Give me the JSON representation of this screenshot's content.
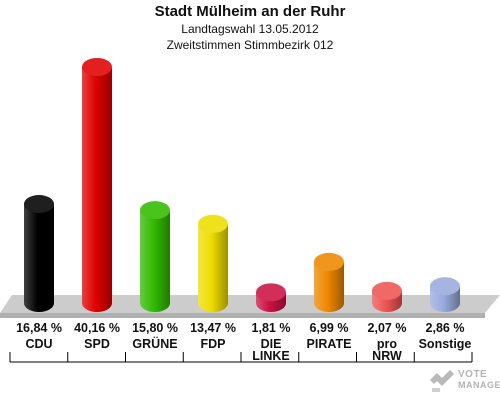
{
  "chart_data": {
    "type": "bar",
    "title": "Stadt Mülheim an der Ruhr",
    "subtitle_lines": [
      "Landtagswahl 13.05.2012",
      "Zweitstimmen Stimmbezirk 012"
    ],
    "categories": [
      [
        "CDU"
      ],
      [
        "SPD"
      ],
      [
        "GRÜNE"
      ],
      [
        "FDP"
      ],
      [
        "DIE",
        "LINKE"
      ],
      [
        "PIRATE"
      ],
      [
        "pro",
        "NRW"
      ],
      [
        "Sonstige"
      ]
    ],
    "values": [
      16.84,
      40.16,
      15.8,
      13.47,
      1.81,
      6.99,
      2.07,
      2.86
    ],
    "value_labels": [
      "16,84 %",
      "40,16 %",
      "15,80 %",
      "13,47 %",
      "1,81 %",
      "6,99 %",
      "2,07 %",
      "2,86 %"
    ],
    "colors": [
      "#000000",
      "#e00000",
      "#33bb00",
      "#eedd00",
      "#cc1144",
      "#ee8800",
      "#ee5555",
      "#99aadd"
    ],
    "ylim": [
      0,
      40.16
    ],
    "grid": false,
    "legend": "none"
  },
  "watermark": {
    "line1": "VOTE",
    "line2": "MANAGER"
  }
}
